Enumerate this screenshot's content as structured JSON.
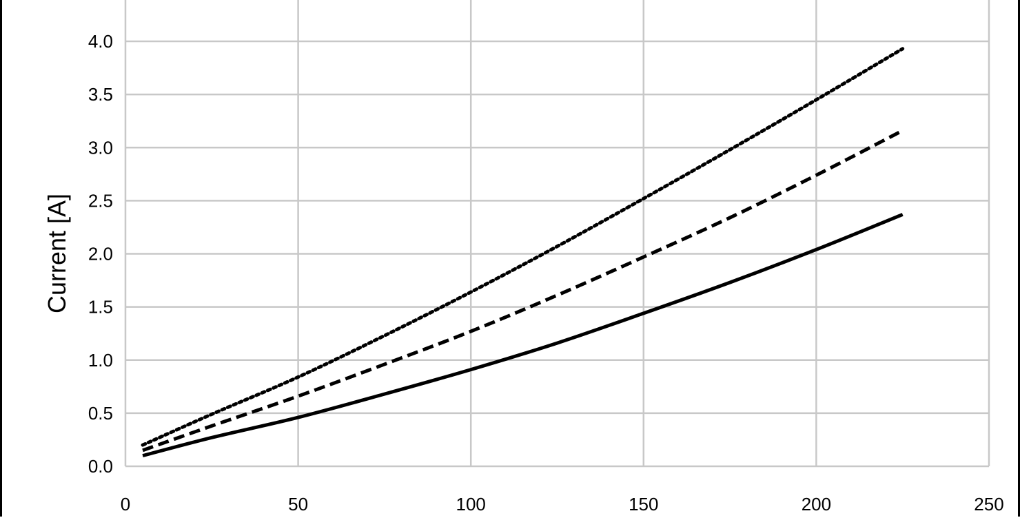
{
  "chart_data": {
    "type": "line",
    "title": "",
    "xlabel": "",
    "ylabel": "Current [A]",
    "xlim": [
      0,
      250
    ],
    "ylim": [
      0,
      4.0
    ],
    "grid": true,
    "legend": "none",
    "x_ticks": [
      "0",
      "50",
      "100",
      "150",
      "200",
      "250"
    ],
    "y_ticks": [
      "0.0",
      "0.5",
      "1.0",
      "1.5",
      "2.0",
      "2.5",
      "3.0",
      "3.5",
      "4.0"
    ],
    "series": [
      {
        "style": "solid",
        "color": "#000000",
        "x": [
          5,
          25,
          50,
          75,
          100,
          125,
          150,
          175,
          200,
          225
        ],
        "y": [
          0.1,
          0.27,
          0.46,
          0.68,
          0.91,
          1.16,
          1.44,
          1.73,
          2.04,
          2.37
        ]
      },
      {
        "style": "dashed",
        "color": "#000000",
        "x": [
          5,
          25,
          50,
          75,
          100,
          125,
          150,
          175,
          200,
          225
        ],
        "y": [
          0.15,
          0.38,
          0.66,
          0.96,
          1.27,
          1.61,
          1.97,
          2.34,
          2.74,
          3.16
        ]
      },
      {
        "style": "dotted",
        "color": "#000000",
        "x": [
          5,
          25,
          50,
          75,
          100,
          125,
          150,
          175,
          200,
          225
        ],
        "y": [
          0.2,
          0.49,
          0.84,
          1.23,
          1.64,
          2.07,
          2.52,
          2.98,
          3.45,
          3.93
        ]
      }
    ],
    "colors": {
      "grid": "#c8c8c8",
      "line": "#000000"
    }
  }
}
